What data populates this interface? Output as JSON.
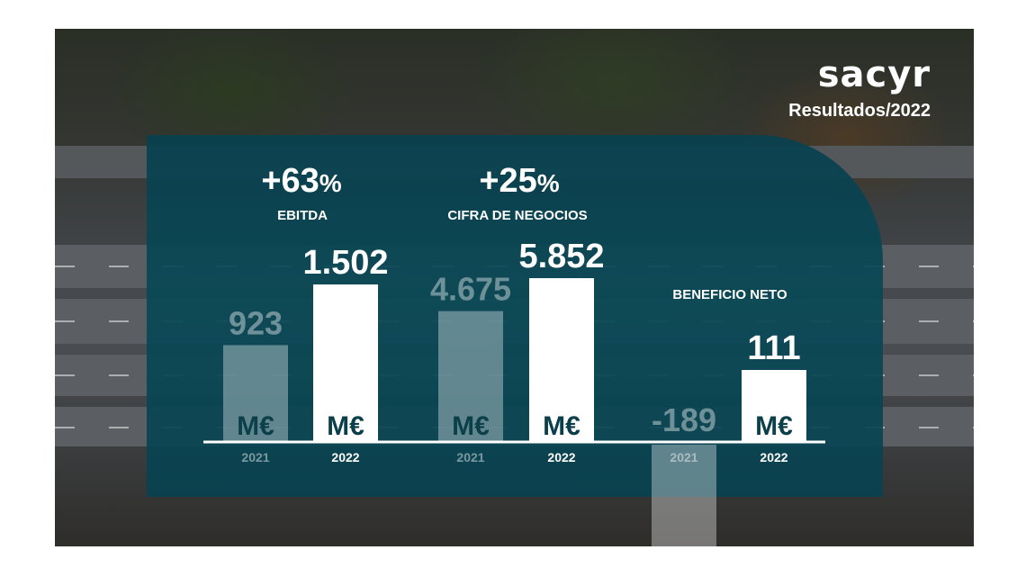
{
  "brand": {
    "logo": "sacyr",
    "subtitle": "Resultados/2022"
  },
  "colors": {
    "panel": "#0a4a57",
    "bar_current": "#ffffff",
    "bar_previous": "#ffffff",
    "unit_text": "#0b3f4a"
  },
  "chart_data": {
    "type": "bar",
    "unit": "M€",
    "groups": [
      {
        "name": "EBITDA",
        "change": "+63%",
        "change_number": "+63",
        "change_symbol": "%",
        "bars": [
          {
            "year": "2021",
            "value": 923,
            "label": "923"
          },
          {
            "year": "2022",
            "value": 1502,
            "label": "1.502"
          }
        ]
      },
      {
        "name": "CIFRA DE NEGOCIOS",
        "change": "+25%",
        "change_number": "+25",
        "change_symbol": "%",
        "bars": [
          {
            "year": "2021",
            "value": 4675,
            "label": "4.675"
          },
          {
            "year": "2022",
            "value": 5852,
            "label": "5.852"
          }
        ]
      },
      {
        "name": "BENEFICIO NETO",
        "bars": [
          {
            "year": "2021",
            "value": -189,
            "label": "-189"
          },
          {
            "year": "2022",
            "value": 111,
            "label": "111"
          }
        ]
      }
    ]
  }
}
